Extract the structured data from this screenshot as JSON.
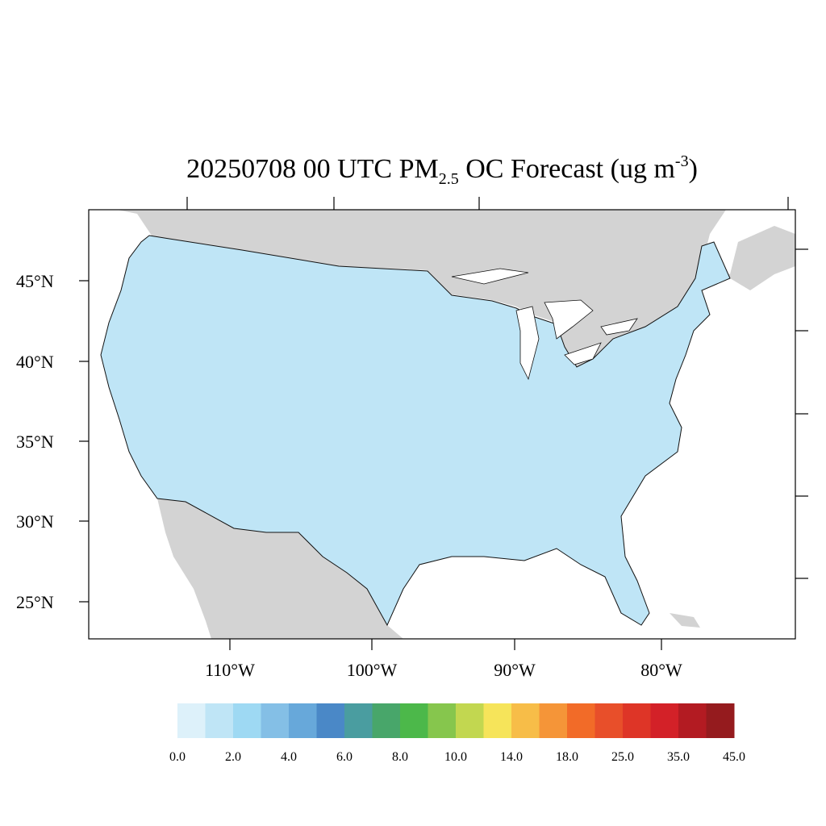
{
  "title": {
    "prefix": "20250708 00 UTC PM",
    "subscript": "2.5",
    "middle": " OC Forecast (ug m",
    "superscript": "-3",
    "suffix": ")"
  },
  "map": {
    "lat_labels": [
      "45°N",
      "40°N",
      "35°N",
      "30°N",
      "25°N"
    ],
    "lon_labels": [
      "110°W",
      "100°W",
      "90°W",
      "80°W"
    ],
    "land_color": "#d3d3d3",
    "ocean_color": "#ffffff"
  },
  "colorbar": {
    "colors": [
      "#ddf1fa",
      "#bfe5f6",
      "#9ed9f3",
      "#84bfe6",
      "#67a8da",
      "#4a88c7",
      "#4a9da0",
      "#48a66a",
      "#4cb84a",
      "#86c64d",
      "#c2d750",
      "#f6e45a",
      "#f7bd48",
      "#f59538",
      "#f26b28",
      "#e84f2a",
      "#de3527",
      "#d32128",
      "#b31b22",
      "#951b1e"
    ],
    "labels": [
      "0.0",
      "2.0",
      "4.0",
      "6.0",
      "8.0",
      "10.0",
      "14.0",
      "18.0",
      "25.0",
      "35.0",
      "45.0"
    ]
  }
}
